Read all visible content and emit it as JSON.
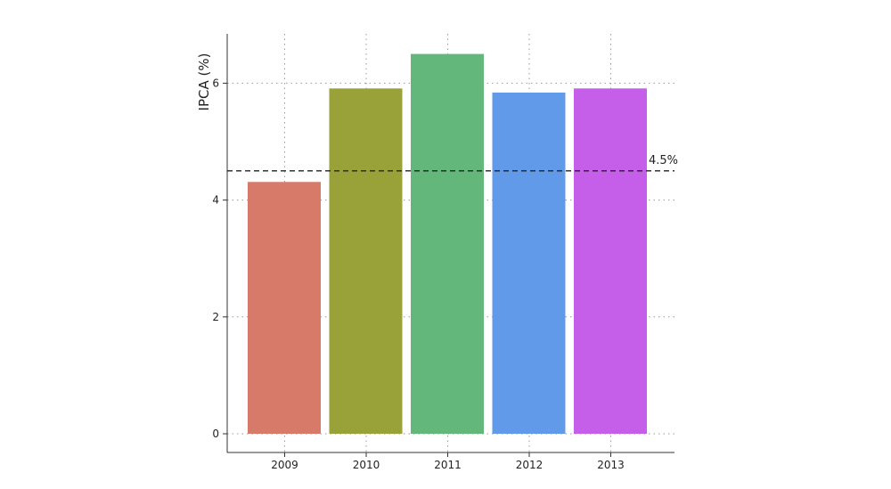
{
  "chart_data": {
    "type": "bar",
    "categories": [
      "2009",
      "2010",
      "2011",
      "2012",
      "2013"
    ],
    "values": [
      4.31,
      5.91,
      6.5,
      5.84,
      5.91
    ],
    "bar_colors": [
      "#d77a69",
      "#99a139",
      "#63b77a",
      "#619ae8",
      "#c55ee8"
    ],
    "xlabel": "",
    "ylabel": "IPCA (%)",
    "ylim": [
      -0.3,
      6.85
    ],
    "yticks": [
      0,
      2,
      4,
      6
    ],
    "grid": true,
    "reference_line": {
      "value": 4.5,
      "label": "4.5%",
      "color": "#222222"
    }
  }
}
